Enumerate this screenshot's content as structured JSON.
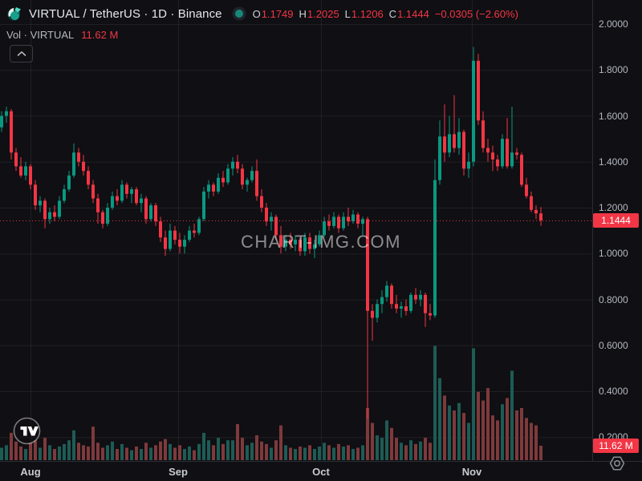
{
  "header": {
    "symbol_title": "VIRTUAL / TetherUS · 1D · Binance",
    "ohlc": {
      "o_label": "O",
      "o": "1.1749",
      "h_label": "H",
      "h": "1.2025",
      "l_label": "L",
      "l": "1.1206",
      "c_label": "C",
      "c": "1.1444",
      "change": "−0.0305 (−2.60%)"
    },
    "volume_row": {
      "label": "Vol · VIRTUAL",
      "value": "11.62 M"
    }
  },
  "badges": {
    "price": "1.1444",
    "volume": "11.62 M"
  },
  "watermark": "CHART-IMG.COM",
  "axes": {
    "price_ticks": [
      "2.0000",
      "1.8000",
      "1.6000",
      "1.4000",
      "1.2000",
      "1.0000",
      "0.8000",
      "0.6000",
      "0.4000",
      "0.2000"
    ],
    "time_labels": [
      {
        "label": "Aug",
        "x": 38
      },
      {
        "label": "Sep",
        "x": 222
      },
      {
        "label": "Oct",
        "x": 400
      },
      {
        "label": "Nov",
        "x": 588
      }
    ]
  },
  "colors": {
    "background": "#100f13",
    "up": "#089981",
    "down": "#f23645",
    "vol_up": "#1d5c55",
    "vol_down": "#7e3a3c",
    "grid": "rgba(255,255,255,0.07)",
    "axis_text": "#b4b8c1",
    "badge_bg": "#f23645",
    "price_line": "#f23645",
    "marker_dot": "#17877a"
  },
  "chart_data": {
    "type": "candlestick",
    "title": "VIRTUAL / TetherUS · 1D · Binance",
    "interval": "1D",
    "exchange": "Binance",
    "legend": "Vol · VIRTUAL",
    "last_close": 1.1444,
    "change_abs": -0.0305,
    "change_pct": -2.6,
    "price_line": 1.1444,
    "last_volume_m": 11.62,
    "ylim": [
      0.1,
      2.1
    ],
    "y_ticks": [
      2.0,
      1.8,
      1.6,
      1.4,
      1.2,
      1.0,
      0.8,
      0.6,
      0.4,
      0.2
    ],
    "x_months": [
      "Aug",
      "Sep",
      "Oct",
      "Nov"
    ],
    "grid": true,
    "legend_position": "top-left",
    "columns": [
      "open",
      "high",
      "low",
      "close",
      "volume_m"
    ],
    "candles": [
      [
        1.55,
        1.62,
        1.53,
        1.6,
        10
      ],
      [
        1.6,
        1.64,
        1.57,
        1.62,
        12
      ],
      [
        1.62,
        1.63,
        1.41,
        1.44,
        22
      ],
      [
        1.44,
        1.46,
        1.36,
        1.38,
        15
      ],
      [
        1.38,
        1.42,
        1.33,
        1.34,
        11
      ],
      [
        1.34,
        1.4,
        1.32,
        1.38,
        9
      ],
      [
        1.38,
        1.39,
        1.28,
        1.3,
        14
      ],
      [
        1.3,
        1.32,
        1.19,
        1.21,
        16
      ],
      [
        1.21,
        1.25,
        1.18,
        1.23,
        10
      ],
      [
        1.23,
        1.24,
        1.11,
        1.15,
        18
      ],
      [
        1.15,
        1.2,
        1.13,
        1.18,
        12
      ],
      [
        1.18,
        1.21,
        1.14,
        1.16,
        9
      ],
      [
        1.16,
        1.25,
        1.15,
        1.23,
        11
      ],
      [
        1.23,
        1.3,
        1.22,
        1.28,
        13
      ],
      [
        1.28,
        1.36,
        1.27,
        1.34,
        16
      ],
      [
        1.34,
        1.48,
        1.33,
        1.44,
        24
      ],
      [
        1.44,
        1.46,
        1.38,
        1.4,
        14
      ],
      [
        1.4,
        1.43,
        1.34,
        1.36,
        12
      ],
      [
        1.36,
        1.38,
        1.28,
        1.3,
        11
      ],
      [
        1.3,
        1.32,
        1.22,
        1.24,
        27
      ],
      [
        1.24,
        1.26,
        1.13,
        1.18,
        14
      ],
      [
        1.18,
        1.19,
        1.11,
        1.13,
        10
      ],
      [
        1.13,
        1.22,
        1.12,
        1.2,
        12
      ],
      [
        1.2,
        1.27,
        1.19,
        1.25,
        15
      ],
      [
        1.25,
        1.28,
        1.21,
        1.23,
        9
      ],
      [
        1.23,
        1.32,
        1.22,
        1.3,
        13
      ],
      [
        1.3,
        1.31,
        1.24,
        1.26,
        10
      ],
      [
        1.26,
        1.29,
        1.22,
        1.28,
        8
      ],
      [
        1.28,
        1.29,
        1.21,
        1.22,
        11
      ],
      [
        1.22,
        1.26,
        1.18,
        1.24,
        9
      ],
      [
        1.24,
        1.25,
        1.13,
        1.15,
        14
      ],
      [
        1.15,
        1.22,
        1.14,
        1.21,
        10
      ],
      [
        1.21,
        1.22,
        1.12,
        1.14,
        12
      ],
      [
        1.14,
        1.16,
        1.05,
        1.07,
        15
      ],
      [
        1.07,
        1.1,
        0.99,
        1.02,
        17
      ],
      [
        1.02,
        1.13,
        1.01,
        1.1,
        13
      ],
      [
        1.1,
        1.12,
        1.04,
        1.06,
        10
      ],
      [
        1.06,
        1.09,
        1.0,
        1.03,
        12
      ],
      [
        1.03,
        1.08,
        1.0,
        1.06,
        9
      ],
      [
        1.06,
        1.12,
        1.05,
        1.1,
        11
      ],
      [
        1.1,
        1.13,
        1.07,
        1.09,
        8
      ],
      [
        1.09,
        1.16,
        1.08,
        1.15,
        13
      ],
      [
        1.15,
        1.29,
        1.14,
        1.27,
        22
      ],
      [
        1.27,
        1.32,
        1.24,
        1.3,
        16
      ],
      [
        1.3,
        1.31,
        1.25,
        1.27,
        12
      ],
      [
        1.27,
        1.35,
        1.26,
        1.33,
        18
      ],
      [
        1.33,
        1.36,
        1.29,
        1.31,
        13
      ],
      [
        1.31,
        1.39,
        1.3,
        1.37,
        16
      ],
      [
        1.37,
        1.42,
        1.34,
        1.4,
        16
      ],
      [
        1.4,
        1.43,
        1.35,
        1.37,
        29
      ],
      [
        1.37,
        1.39,
        1.28,
        1.3,
        18
      ],
      [
        1.3,
        1.33,
        1.27,
        1.32,
        12
      ],
      [
        1.32,
        1.38,
        1.31,
        1.36,
        14
      ],
      [
        1.36,
        1.41,
        1.23,
        1.25,
        20
      ],
      [
        1.25,
        1.28,
        1.18,
        1.2,
        15
      ],
      [
        1.2,
        1.22,
        1.12,
        1.14,
        13
      ],
      [
        1.14,
        1.18,
        1.1,
        1.16,
        10
      ],
      [
        1.16,
        1.17,
        1.06,
        1.08,
        16
      ],
      [
        1.08,
        1.12,
        1.0,
        1.03,
        28
      ],
      [
        1.03,
        1.08,
        1.01,
        1.06,
        12
      ],
      [
        1.06,
        1.09,
        1.02,
        1.04,
        10
      ],
      [
        1.04,
        1.08,
        1.01,
        1.06,
        9
      ],
      [
        1.06,
        1.07,
        0.99,
        1.01,
        11
      ],
      [
        1.01,
        1.09,
        0.99,
        1.07,
        10
      ],
      [
        1.07,
        1.09,
        1.0,
        1.02,
        12
      ],
      [
        1.02,
        1.06,
        0.98,
        1.04,
        9
      ],
      [
        1.04,
        1.1,
        1.03,
        1.08,
        11
      ],
      [
        1.08,
        1.16,
        1.07,
        1.14,
        14
      ],
      [
        1.14,
        1.17,
        1.1,
        1.12,
        12
      ],
      [
        1.12,
        1.18,
        1.11,
        1.16,
        10
      ],
      [
        1.16,
        1.17,
        1.09,
        1.11,
        13
      ],
      [
        1.11,
        1.18,
        1.1,
        1.16,
        11
      ],
      [
        1.16,
        1.2,
        1.12,
        1.14,
        12
      ],
      [
        1.14,
        1.19,
        1.13,
        1.17,
        9
      ],
      [
        1.17,
        1.18,
        1.11,
        1.13,
        10
      ],
      [
        1.13,
        1.16,
        1.08,
        1.15,
        12
      ],
      [
        1.15,
        1.16,
        0.28,
        0.75,
        42
      ],
      [
        0.75,
        0.78,
        0.62,
        0.72,
        30
      ],
      [
        0.72,
        0.8,
        0.7,
        0.78,
        20
      ],
      [
        0.78,
        0.84,
        0.74,
        0.81,
        18
      ],
      [
        0.81,
        0.88,
        0.79,
        0.86,
        32
      ],
      [
        0.86,
        0.87,
        0.76,
        0.78,
        26
      ],
      [
        0.78,
        0.82,
        0.74,
        0.76,
        18
      ],
      [
        0.76,
        0.79,
        0.72,
        0.77,
        14
      ],
      [
        0.77,
        0.8,
        0.73,
        0.75,
        12
      ],
      [
        0.75,
        0.83,
        0.74,
        0.82,
        16
      ],
      [
        0.82,
        0.85,
        0.78,
        0.8,
        13
      ],
      [
        0.8,
        0.84,
        0.77,
        0.82,
        15
      ],
      [
        0.82,
        0.83,
        0.68,
        0.74,
        18
      ],
      [
        0.74,
        0.78,
        0.71,
        0.73,
        14
      ],
      [
        0.73,
        1.41,
        0.72,
        1.32,
        92
      ],
      [
        1.32,
        1.58,
        1.3,
        1.51,
        66
      ],
      [
        1.51,
        1.65,
        1.4,
        1.44,
        52
      ],
      [
        1.44,
        1.6,
        1.42,
        1.52,
        44
      ],
      [
        1.52,
        1.69,
        1.44,
        1.46,
        40
      ],
      [
        1.46,
        1.59,
        1.43,
        1.53,
        46
      ],
      [
        1.53,
        1.54,
        1.34,
        1.37,
        38
      ],
      [
        1.37,
        1.44,
        1.33,
        1.4,
        30
      ],
      [
        1.4,
        1.9,
        1.38,
        1.84,
        90
      ],
      [
        1.84,
        1.87,
        1.56,
        1.58,
        55
      ],
      [
        1.58,
        1.62,
        1.44,
        1.46,
        48
      ],
      [
        1.46,
        1.5,
        1.4,
        1.44,
        58
      ],
      [
        1.44,
        1.47,
        1.36,
        1.41,
        36
      ],
      [
        1.41,
        1.43,
        1.36,
        1.38,
        32
      ],
      [
        1.38,
        1.52,
        1.37,
        1.5,
        45
      ],
      [
        1.5,
        1.59,
        1.37,
        1.38,
        50
      ],
      [
        1.38,
        1.64,
        1.37,
        1.44,
        72
      ],
      [
        1.44,
        1.46,
        1.41,
        1.43,
        40
      ],
      [
        1.43,
        1.44,
        1.29,
        1.3,
        42
      ],
      [
        1.3,
        1.33,
        1.24,
        1.25,
        34
      ],
      [
        1.25,
        1.27,
        1.18,
        1.19,
        30
      ],
      [
        1.19,
        1.21,
        1.15,
        1.175,
        28
      ],
      [
        1.1749,
        1.2025,
        1.1206,
        1.1444,
        11.62
      ]
    ]
  }
}
